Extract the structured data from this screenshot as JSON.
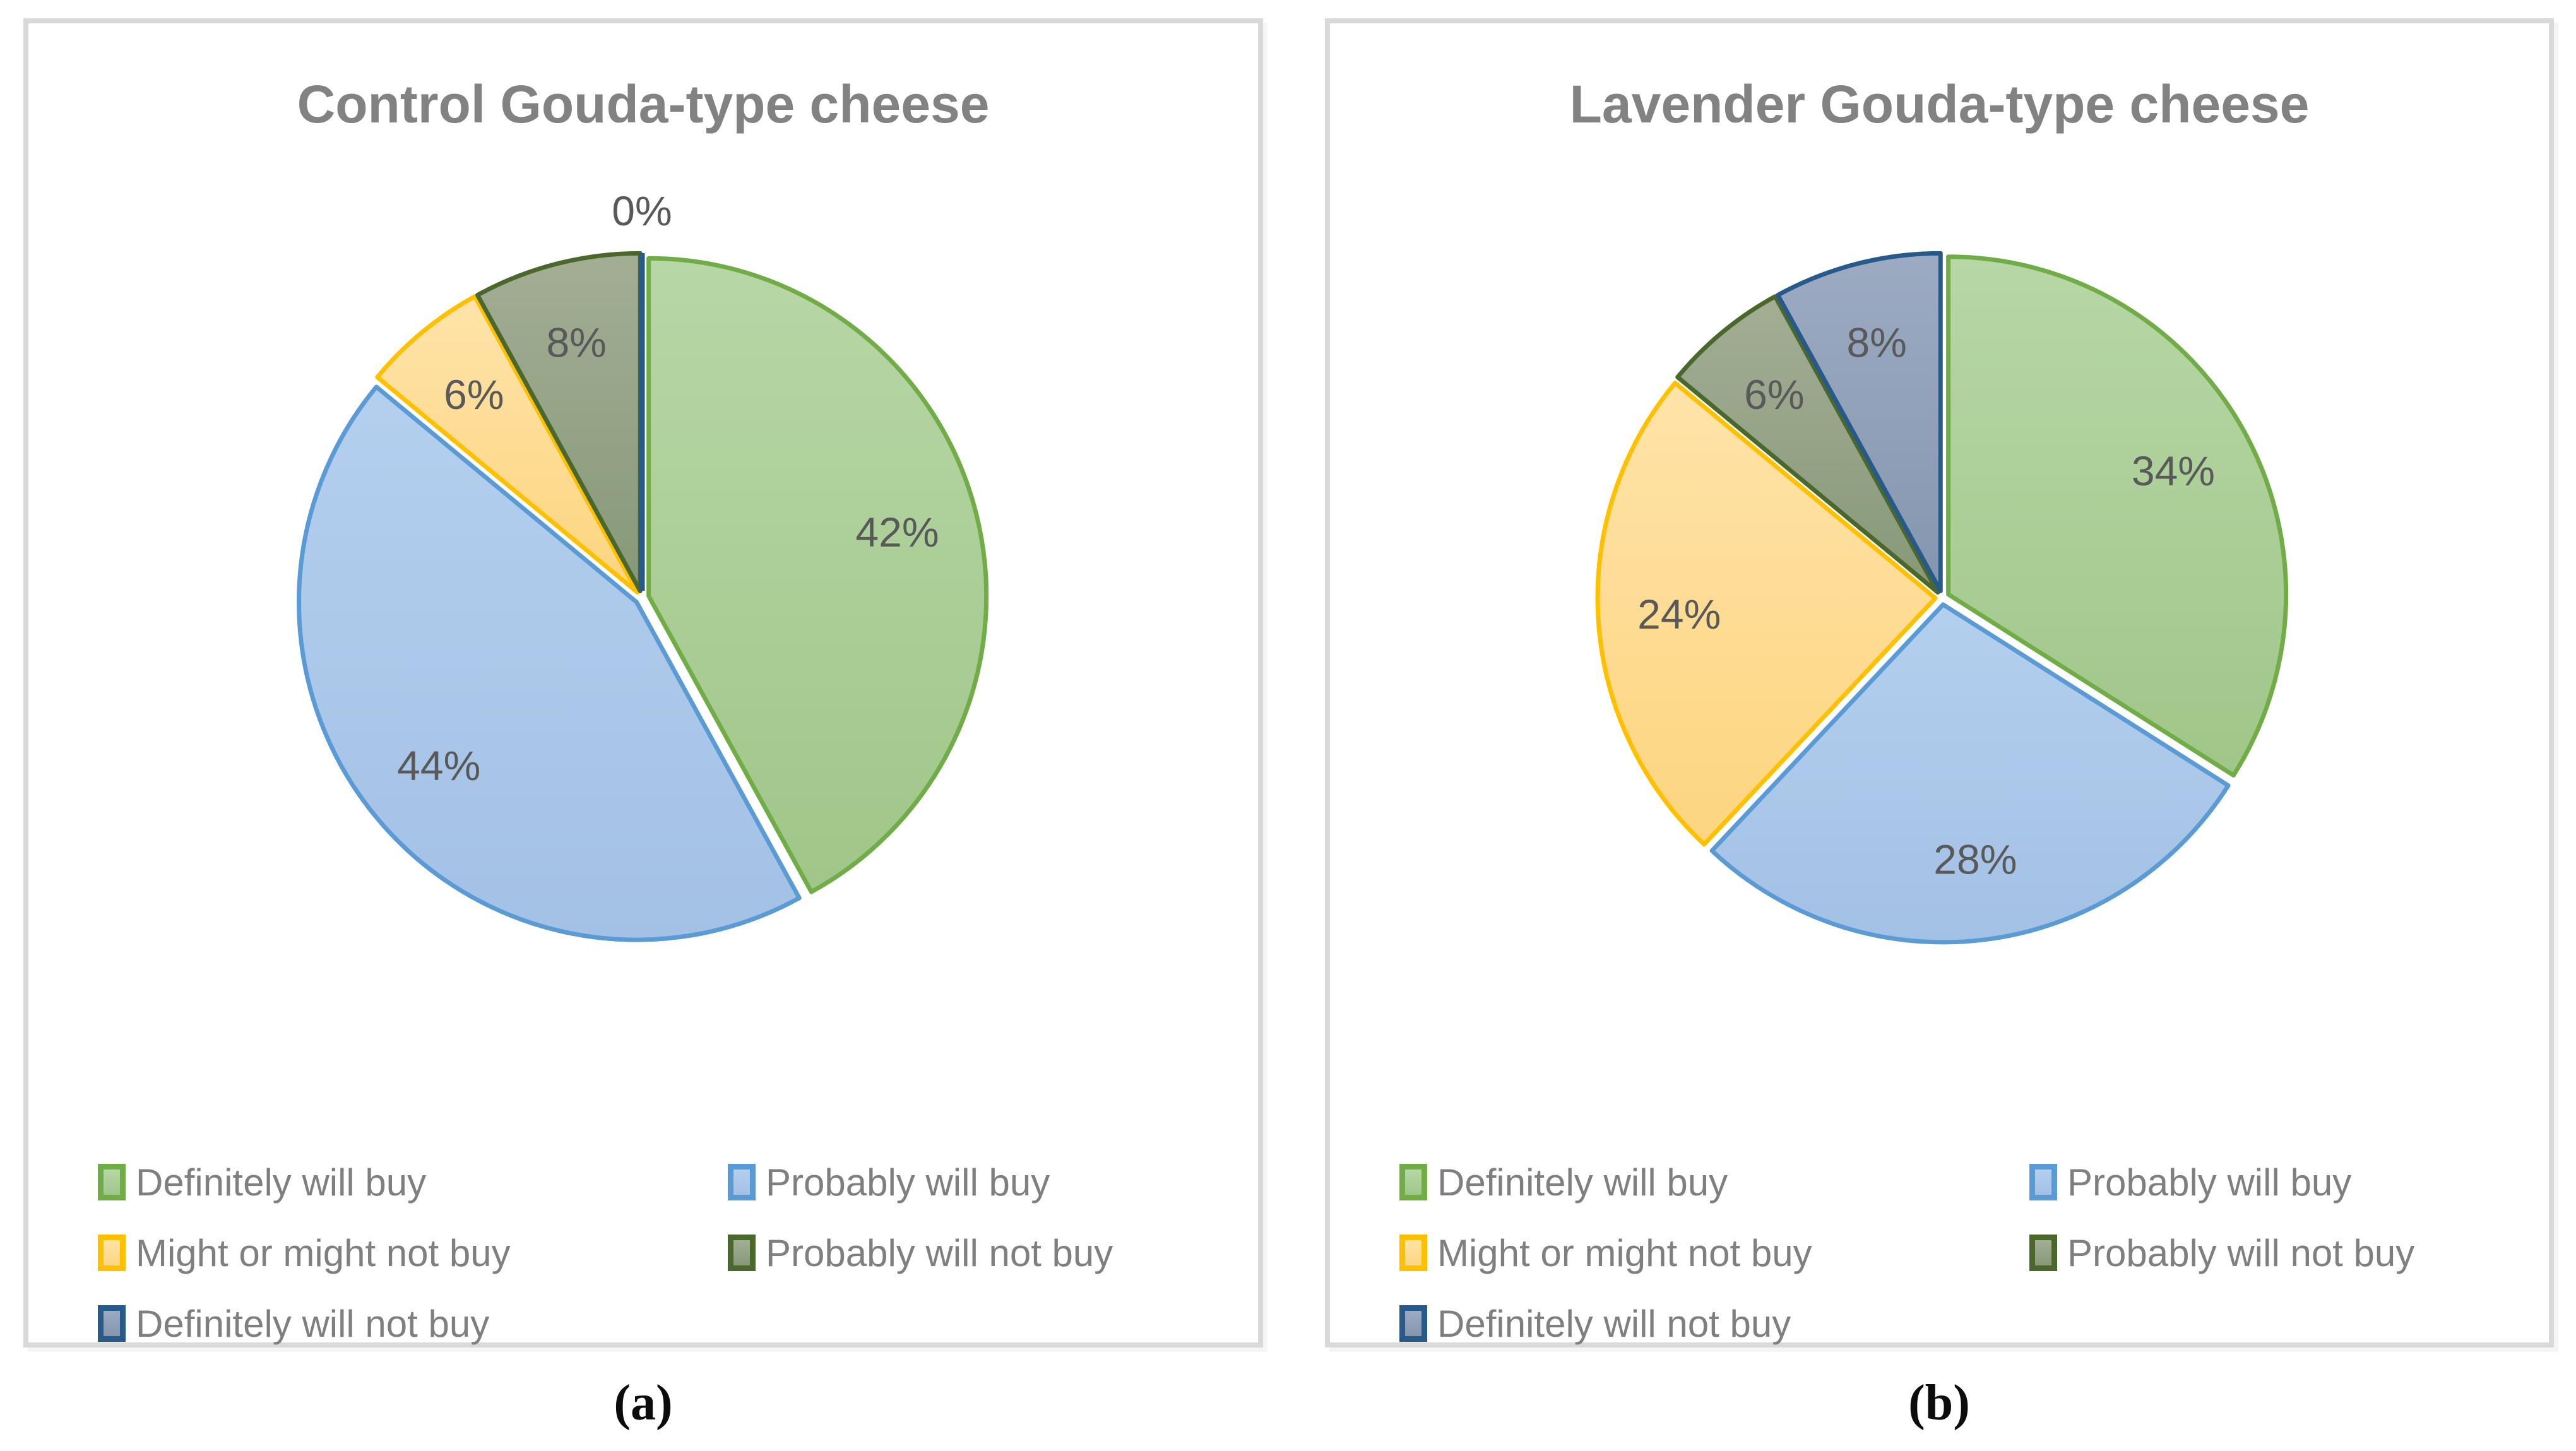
{
  "chart_data": [
    {
      "type": "pie",
      "title": "Control Gouda-type cheese",
      "caption": "(a)",
      "categories": [
        "Definitely will buy",
        "Probably will buy",
        "Might or might not buy",
        "Probably will not buy",
        "Definitely will not buy"
      ],
      "values": [
        42,
        44,
        6,
        8,
        0
      ],
      "labels": [
        "42%",
        "44%",
        "6%",
        "8%",
        "0%"
      ],
      "start_angle_deg": 0,
      "direction": "clockwise",
      "legend_position": "bottom",
      "data_label_style": "percent-inside-slice, zero-value-outside-top"
    },
    {
      "type": "pie",
      "title": "Lavender Gouda-type cheese",
      "caption": "(b)",
      "categories": [
        "Definitely will buy",
        "Probably will buy",
        "Might or might not buy",
        "Probably will not buy",
        "Definitely will not buy"
      ],
      "values": [
        34,
        28,
        24,
        6,
        8
      ],
      "labels": [
        "34%",
        "28%",
        "24%",
        "6%",
        "8%"
      ],
      "start_angle_deg": 0,
      "direction": "clockwise",
      "legend_position": "bottom",
      "data_label_style": "percent-inside-slice"
    }
  ],
  "palette": [
    {
      "category": "Definitely will buy",
      "fill_top": "#b7d7a6",
      "fill_bottom": "#a0c689",
      "border": "#70ad47"
    },
    {
      "category": "Probably will buy",
      "fill_top": "#b4cfee",
      "fill_bottom": "#a3c1e5",
      "border": "#5b9bd5"
    },
    {
      "category": "Might or might not buy",
      "fill_top": "#ffe3a9",
      "fill_bottom": "#fcd57f",
      "border": "#ffc000"
    },
    {
      "category": "Probably will not buy",
      "fill_top": "#a3ae95",
      "fill_bottom": "#879878",
      "border": "#4a682c"
    },
    {
      "category": "Definitely will not buy",
      "fill_top": "#9cabc2",
      "fill_bottom": "#8496af",
      "border": "#27598b"
    }
  ],
  "colors": {
    "title": "#828282",
    "data_label": "#595959",
    "legend_text": "#7f7f7f",
    "caption": "#0c0c0c",
    "panel_border": "#d9d9d9",
    "background": "#ffffff"
  }
}
